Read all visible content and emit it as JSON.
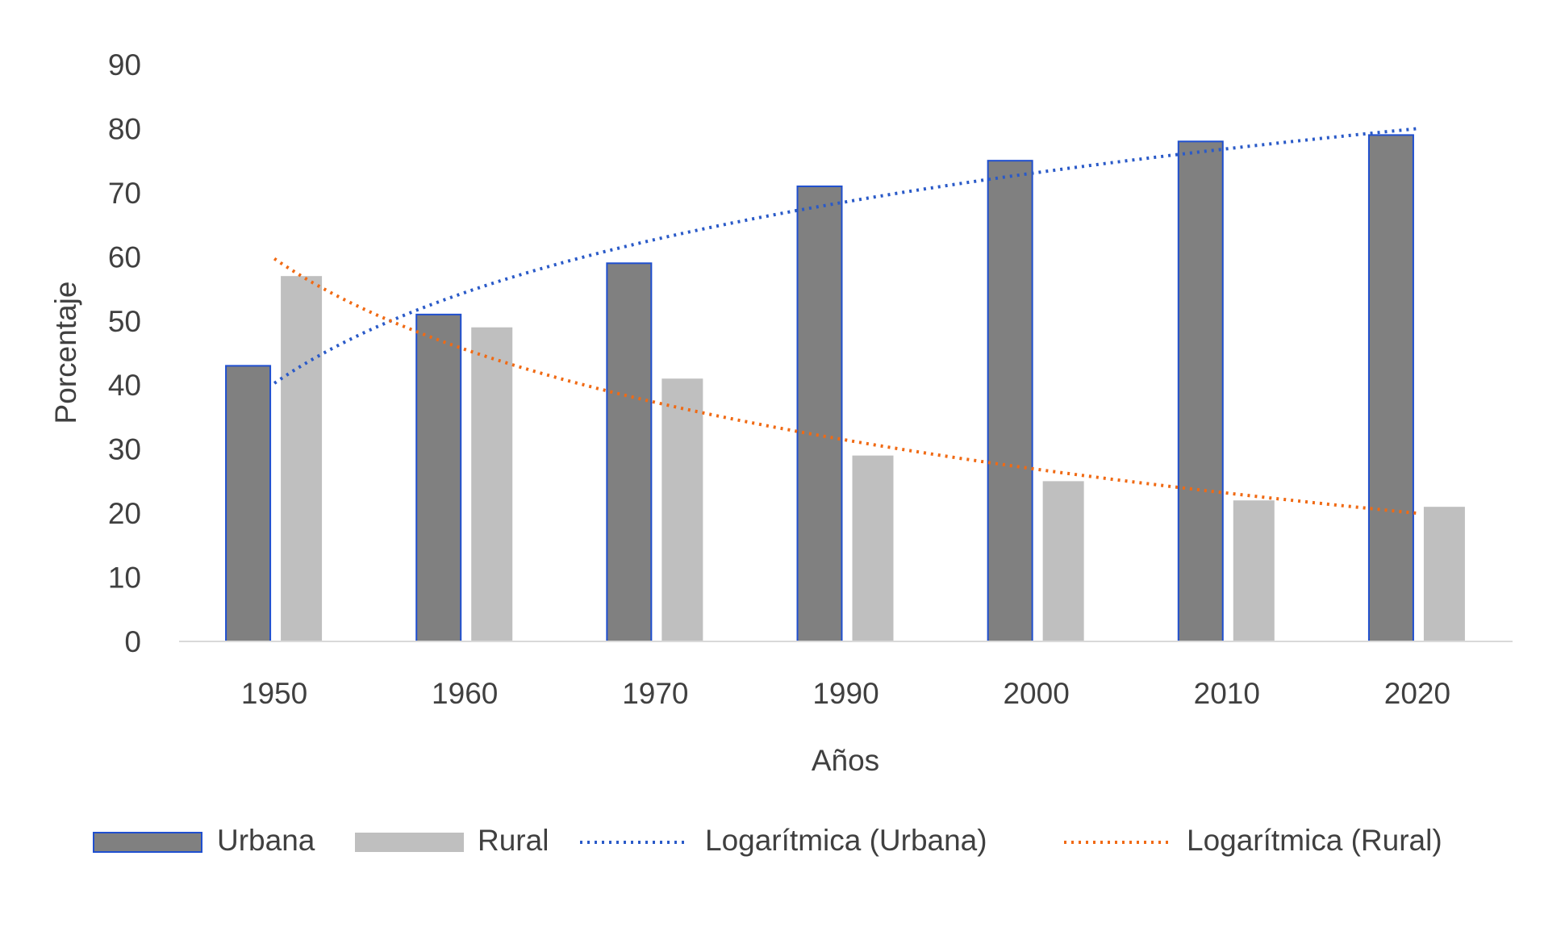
{
  "chart_data": {
    "type": "bar",
    "title": "",
    "xlabel": "Años",
    "ylabel": "Porcentaje",
    "ylim": [
      0,
      90
    ],
    "yticks": [
      0,
      10,
      20,
      30,
      40,
      50,
      60,
      70,
      80,
      90
    ],
    "categories": [
      "1950",
      "1960",
      "1970",
      "1990",
      "2000",
      "2010",
      "2020"
    ],
    "series": [
      {
        "name": "Urbana",
        "type": "bar",
        "color": "#808080",
        "edge": "#1f4fcf",
        "values": [
          43,
          51,
          59,
          71,
          75,
          78,
          79
        ]
      },
      {
        "name": "Rural",
        "type": "bar",
        "color": "#bfbfbf",
        "values": [
          57,
          49,
          41,
          29,
          25,
          22,
          21
        ]
      }
    ],
    "trendlines": [
      {
        "name": "Logarítmica (Urbana)",
        "of": "Urbana",
        "fit": "log",
        "color": "#2a5ac8"
      },
      {
        "name": "Logarítmica (Rural)",
        "of": "Rural",
        "fit": "log",
        "color": "#f06a14"
      }
    ],
    "grid": false,
    "legend": "bottom"
  }
}
